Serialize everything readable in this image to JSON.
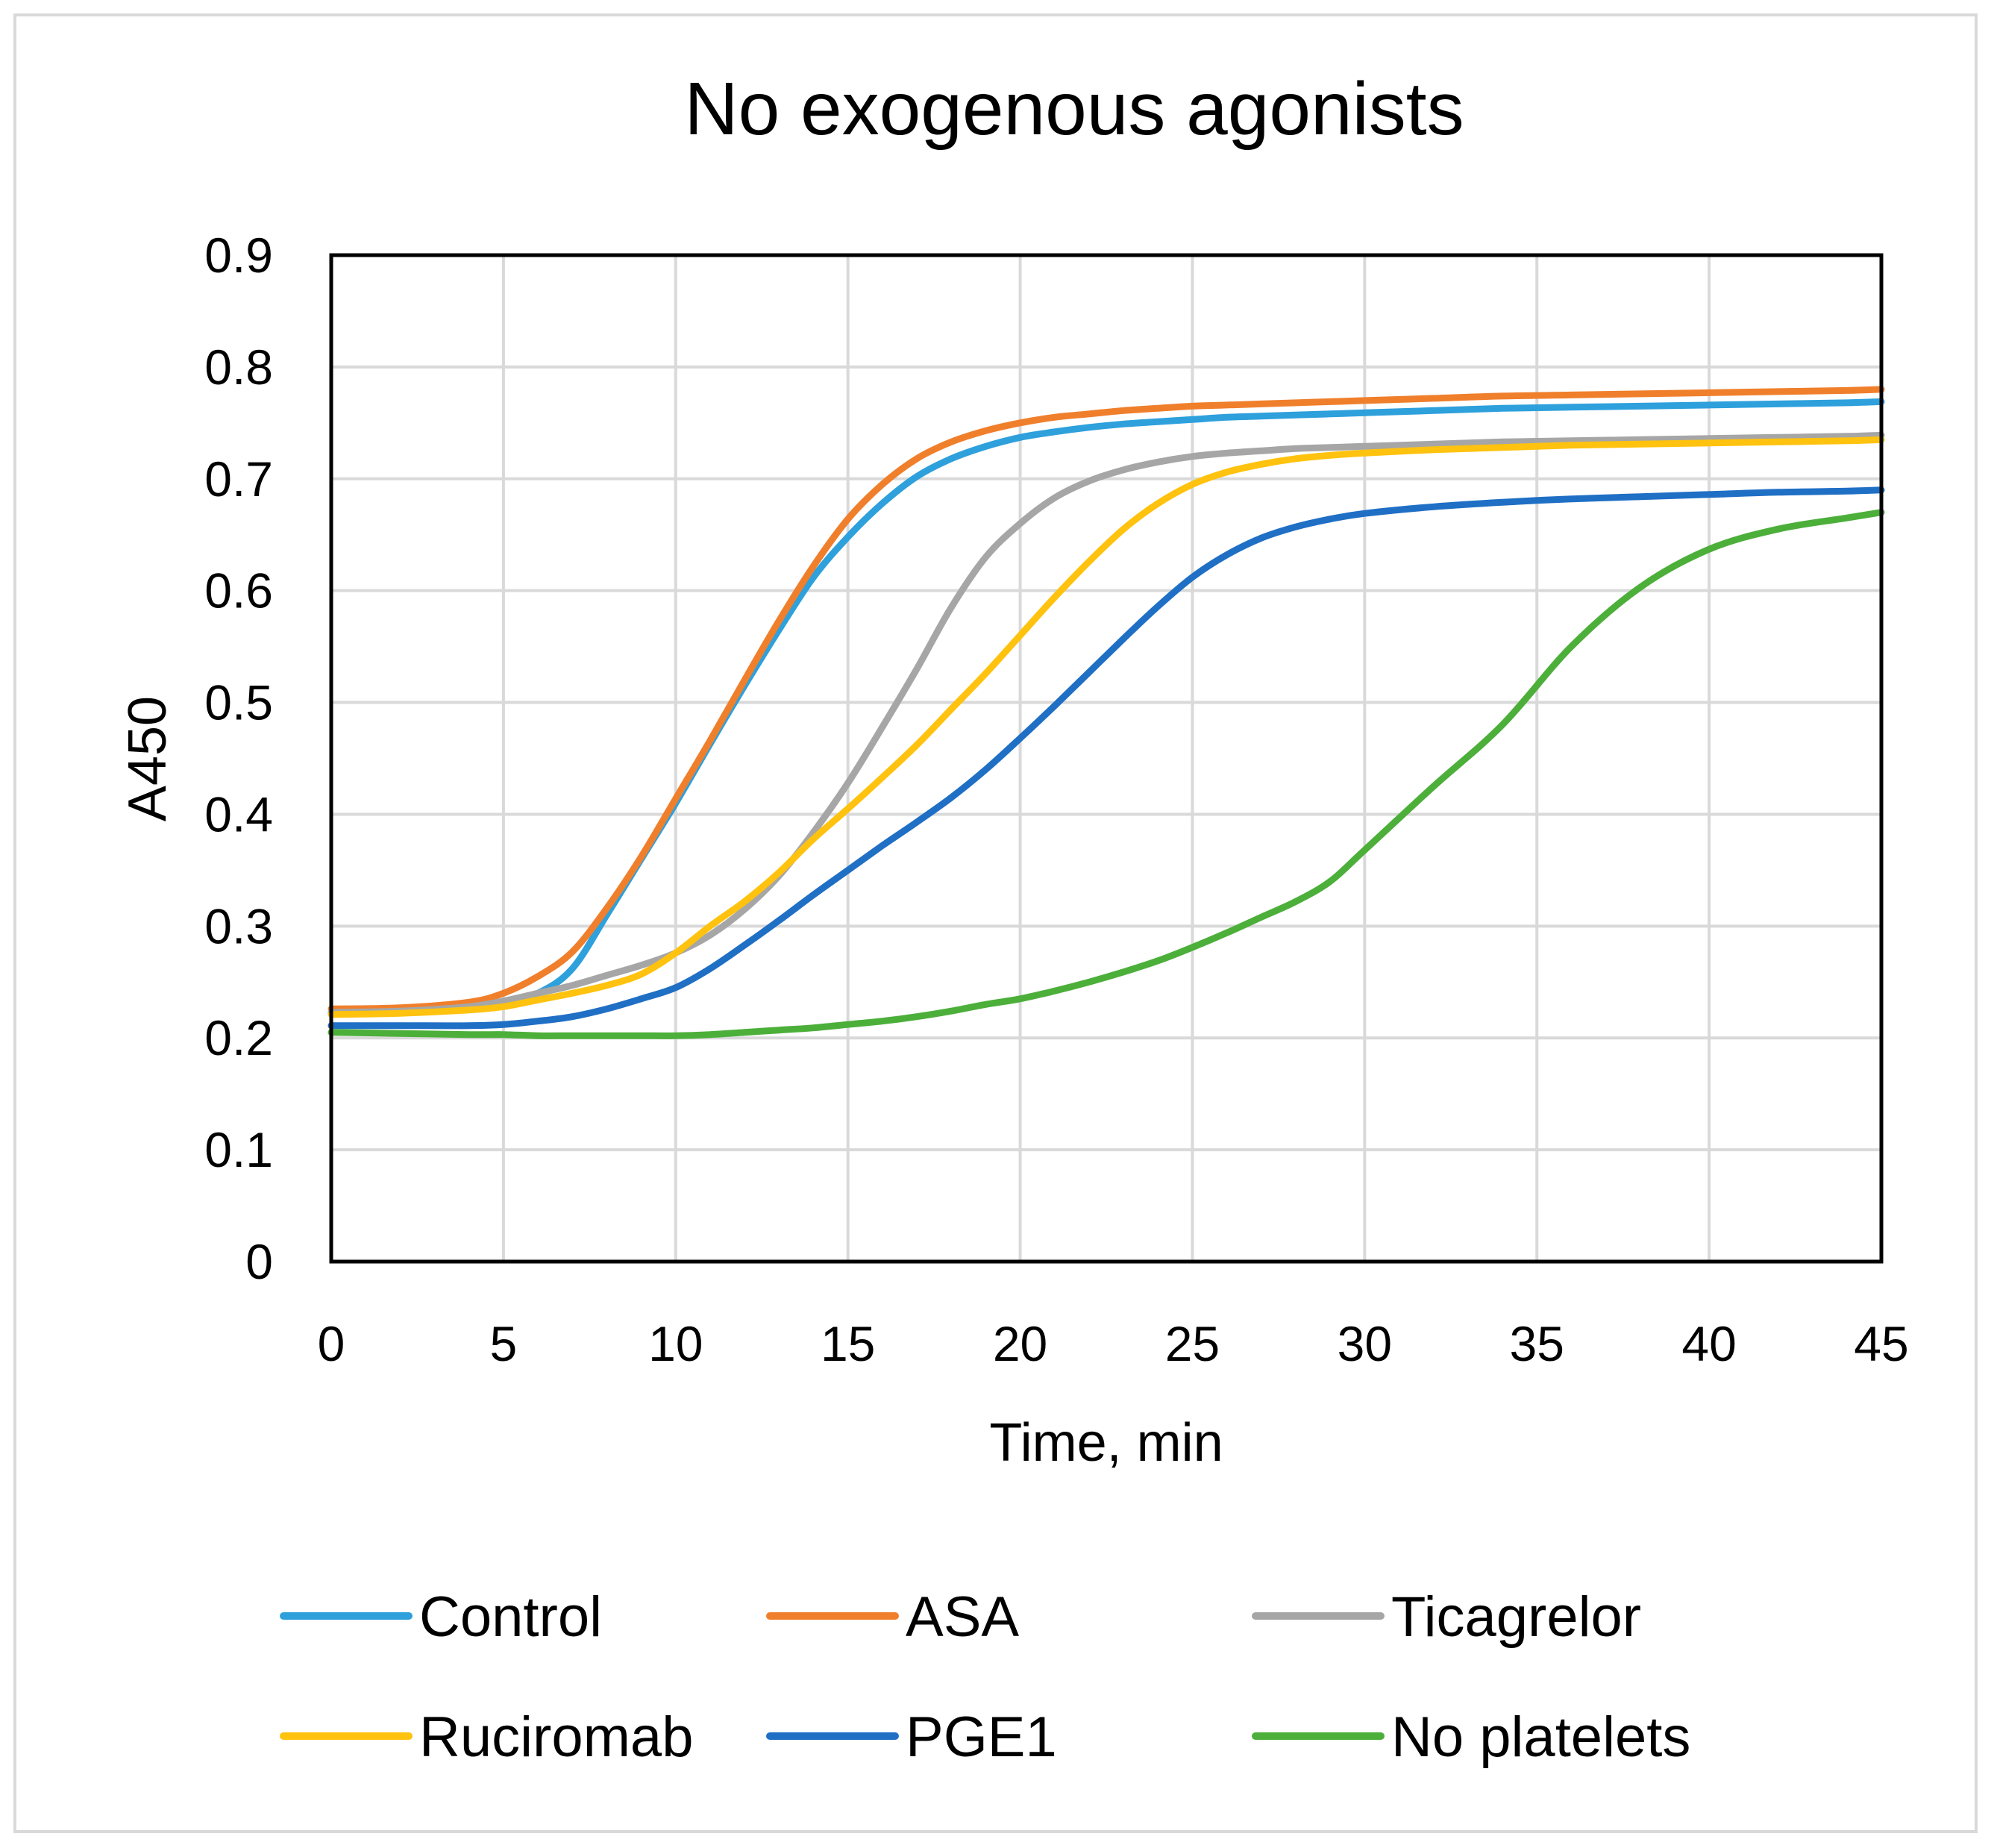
{
  "chart_data": {
    "type": "line",
    "title": "No exogenous agonists",
    "xlabel": "Time, min",
    "ylabel": "A450",
    "xlim": [
      0,
      45
    ],
    "ylim": [
      0,
      0.9
    ],
    "x_ticks": [
      "0",
      "5",
      "10",
      "15",
      "20",
      "25",
      "30",
      "35",
      "40",
      "45"
    ],
    "y_ticks": [
      "0",
      "0.1",
      "0.2",
      "0.3",
      "0.4",
      "0.5",
      "0.6",
      "0.7",
      "0.8",
      "0.9"
    ],
    "grid": true,
    "legend_position": "bottom",
    "x": [
      0,
      2,
      4,
      5,
      6,
      7,
      8,
      9,
      10,
      11,
      12,
      13,
      14,
      15,
      16,
      17,
      18,
      19,
      20,
      21,
      22,
      23,
      24,
      25,
      26,
      27,
      28,
      29,
      30,
      32,
      34,
      36,
      38,
      40,
      42,
      44,
      45
    ],
    "series": [
      {
        "name": "Control",
        "color": "#2ea0dc",
        "values": [
          0.222,
          0.224,
          0.228,
          0.232,
          0.24,
          0.262,
          0.31,
          0.36,
          0.41,
          0.463,
          0.515,
          0.565,
          0.612,
          0.648,
          0.678,
          0.702,
          0.718,
          0.729,
          0.737,
          0.742,
          0.746,
          0.749,
          0.751,
          0.753,
          0.755,
          0.756,
          0.757,
          0.758,
          0.759,
          0.761,
          0.763,
          0.764,
          0.765,
          0.766,
          0.767,
          0.768,
          0.769
        ]
      },
      {
        "name": "ASA",
        "color": "#f07f2c",
        "values": [
          0.226,
          0.227,
          0.232,
          0.24,
          0.255,
          0.277,
          0.316,
          0.362,
          0.414,
          0.466,
          0.52,
          0.573,
          0.622,
          0.664,
          0.695,
          0.718,
          0.733,
          0.743,
          0.75,
          0.755,
          0.758,
          0.761,
          0.763,
          0.765,
          0.766,
          0.767,
          0.768,
          0.769,
          0.77,
          0.772,
          0.774,
          0.775,
          0.776,
          0.777,
          0.778,
          0.779,
          0.78
        ]
      },
      {
        "name": "Ticagrelor",
        "color": "#a6a6a6",
        "values": [
          0.223,
          0.224,
          0.228,
          0.233,
          0.24,
          0.247,
          0.256,
          0.265,
          0.276,
          0.292,
          0.315,
          0.345,
          0.384,
          0.428,
          0.478,
          0.53,
          0.585,
          0.63,
          0.66,
          0.683,
          0.698,
          0.708,
          0.715,
          0.72,
          0.723,
          0.725,
          0.727,
          0.728,
          0.729,
          0.731,
          0.733,
          0.734,
          0.735,
          0.736,
          0.737,
          0.738,
          0.739
        ]
      },
      {
        "name": "Ruciromab",
        "color": "#ffc20e",
        "values": [
          0.221,
          0.222,
          0.225,
          0.228,
          0.234,
          0.24,
          0.247,
          0.257,
          0.276,
          0.3,
          0.322,
          0.348,
          0.378,
          0.405,
          0.433,
          0.462,
          0.494,
          0.526,
          0.56,
          0.594,
          0.626,
          0.655,
          0.678,
          0.695,
          0.706,
          0.713,
          0.718,
          0.721,
          0.723,
          0.726,
          0.728,
          0.73,
          0.731,
          0.732,
          0.733,
          0.734,
          0.735
        ]
      },
      {
        "name": "PGE1",
        "color": "#1f6fc5",
        "values": [
          0.211,
          0.211,
          0.211,
          0.212,
          0.215,
          0.219,
          0.226,
          0.235,
          0.245,
          0.262,
          0.283,
          0.305,
          0.328,
          0.35,
          0.372,
          0.393,
          0.415,
          0.44,
          0.468,
          0.497,
          0.527,
          0.557,
          0.586,
          0.612,
          0.632,
          0.647,
          0.657,
          0.664,
          0.669,
          0.675,
          0.679,
          0.682,
          0.684,
          0.686,
          0.688,
          0.689,
          0.69
        ]
      },
      {
        "name": "No platelets",
        "color": "#4caf3a",
        "values": [
          0.205,
          0.204,
          0.203,
          0.203,
          0.202,
          0.202,
          0.202,
          0.202,
          0.202,
          0.203,
          0.205,
          0.207,
          0.209,
          0.212,
          0.215,
          0.219,
          0.224,
          0.23,
          0.235,
          0.242,
          0.25,
          0.259,
          0.269,
          0.281,
          0.294,
          0.308,
          0.322,
          0.34,
          0.368,
          0.425,
          0.48,
          0.55,
          0.603,
          0.637,
          0.655,
          0.665,
          0.67
        ]
      }
    ]
  }
}
